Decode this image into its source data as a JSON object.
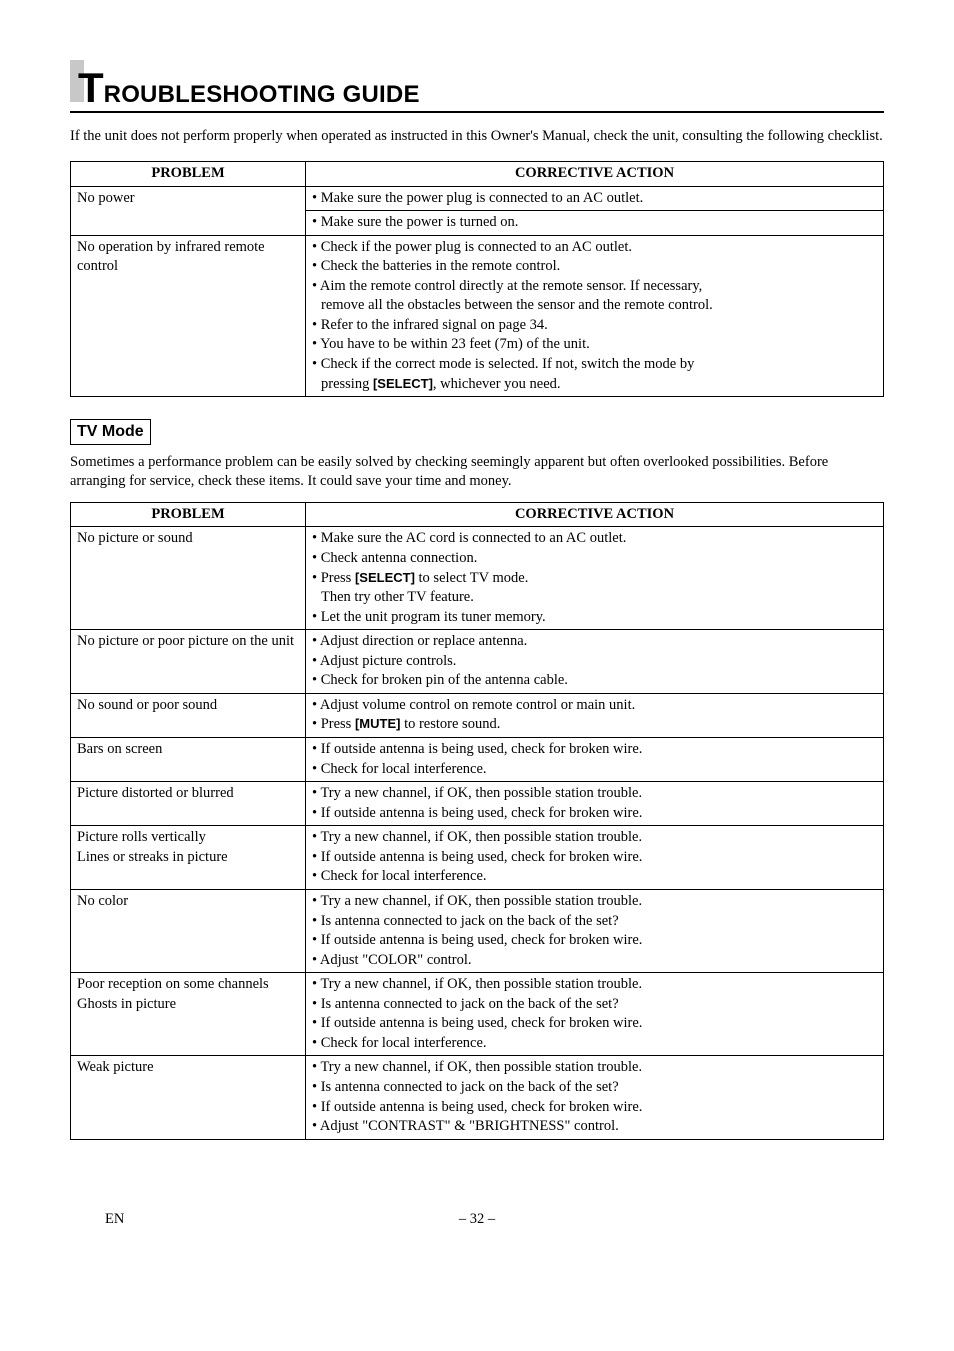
{
  "heading": {
    "bigLetter": "T",
    "rest": "ROUBLESHOOTING GUIDE"
  },
  "intro": "If the unit does not perform properly when operated as instructed in this Owner's Manual, check the unit, consulting the following checklist.",
  "table1": {
    "headers": {
      "problem": "PROBLEM",
      "action": "CORRECTIVE ACTION"
    },
    "rows": [
      {
        "problem": "No power",
        "actions": [
          "• Make sure the power plug is connected to an AC outlet.",
          "• Make sure the power is turned on."
        ]
      },
      {
        "problem": "No operation by infrared remote control",
        "actions": [
          "• Check if the power plug is connected to an AC outlet.",
          "• Check the batteries in the remote control.",
          "• Aim the remote control directly at the remote sensor. If necessary, remove all the obstacles between the sensor and the remote control.",
          "• Refer to the infrared signal on page 34.",
          "• You have to be within 23 feet (7m) of the unit.",
          "• Check if the correct mode is selected. If not, switch the mode by pressing [SELECT], whichever you need."
        ]
      }
    ]
  },
  "tvMode": {
    "label": "TV Mode"
  },
  "tvIntro": "Sometimes a performance problem can be easily solved by checking seemingly apparent but often overlooked possibilities. Before arranging for service, check these items. It could save your time and money.",
  "table2": {
    "headers": {
      "problem": "PROBLEM",
      "action": "CORRECTIVE ACTION"
    },
    "r1p": "No picture or sound",
    "r2p": "No picture or poor picture on the unit",
    "r3p": "No sound or poor sound",
    "r4p": "Bars on screen",
    "r5p": "Picture distorted or blurred",
    "r6p": "Picture rolls vertically\nLines or streaks in picture",
    "r7p": "No color",
    "r8p": "Poor reception on some channels\nGhosts in picture",
    "r9p": "Weak picture"
  },
  "footer": {
    "left": "EN",
    "center": "– 32 –"
  }
}
